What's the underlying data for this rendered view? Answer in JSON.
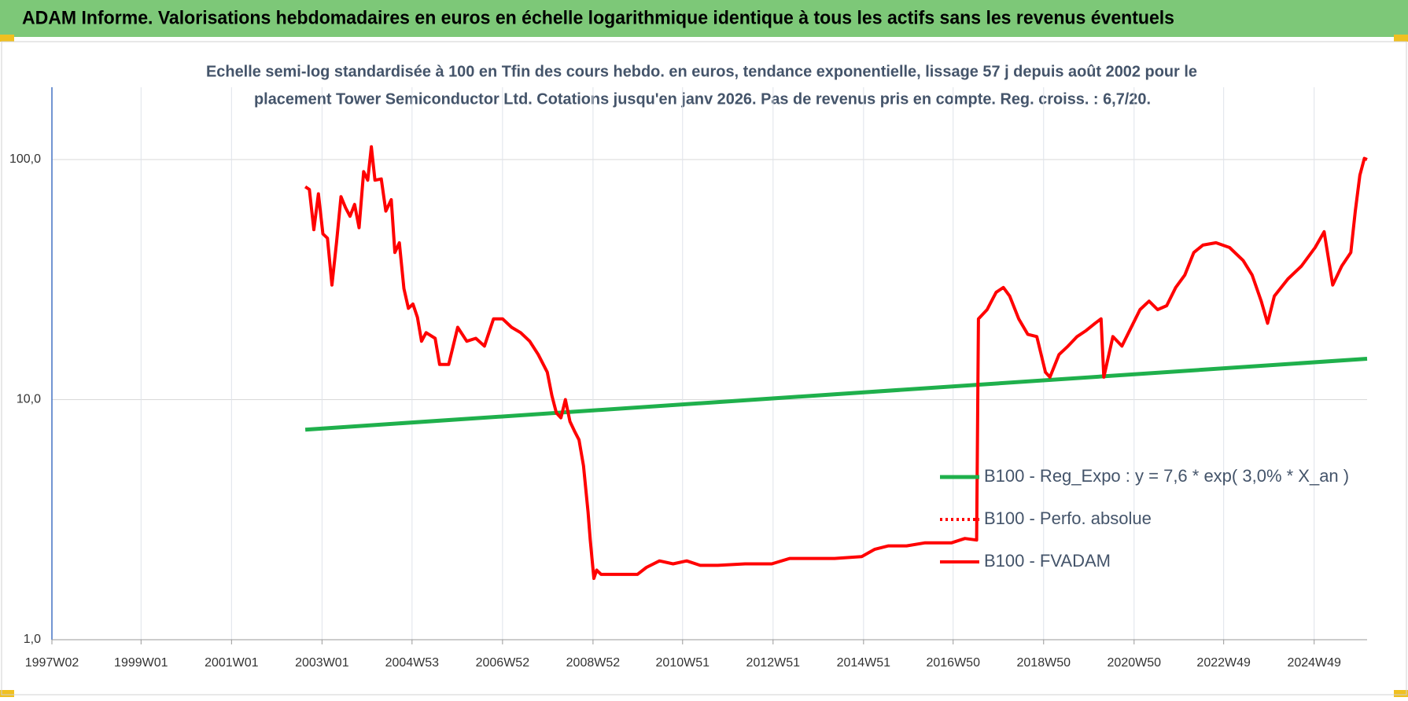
{
  "chart_data": {
    "type": "line",
    "title": "ADAM Informe. Valorisations hebdomadaires en euros en échelle logarithmique identique à tous les actifs sans les revenus éventuels",
    "subtitle": [
      "Echelle semi-log standardisée à 100 en Tfin des cours hebdo. en euros, tendance exponentielle, lissage 57 j depuis août 2002 pour le",
      "placement Tower Semiconductor Ltd. Cotations jusqu'en janv 2026. Pas de revenus pris en compte. Reg. croiss. : 6,7/20."
    ],
    "y_scale": "log",
    "grid": true,
    "legend_position": "right",
    "xlim": [
      1997.03,
      2026.1
    ],
    "xticks": [
      {
        "value": 1997.03,
        "label": "1997W02"
      },
      {
        "value": 1999.0,
        "label": "1999W01"
      },
      {
        "value": 2001.0,
        "label": "2001W01"
      },
      {
        "value": 2003.0,
        "label": "2003W01"
      },
      {
        "value": 2004.99,
        "label": "2004W53"
      },
      {
        "value": 2006.99,
        "label": "2006W52"
      },
      {
        "value": 2008.99,
        "label": "2008W52"
      },
      {
        "value": 2010.97,
        "label": "2010W51"
      },
      {
        "value": 2012.97,
        "label": "2012W51"
      },
      {
        "value": 2014.97,
        "label": "2014W51"
      },
      {
        "value": 2016.95,
        "label": "2016W50"
      },
      {
        "value": 2018.95,
        "label": "2018W50"
      },
      {
        "value": 2020.95,
        "label": "2020W50"
      },
      {
        "value": 2022.93,
        "label": "2022W49"
      },
      {
        "value": 2024.93,
        "label": "2024W49"
      }
    ],
    "ylim": [
      1,
      200
    ],
    "yticks": [
      {
        "value": 1,
        "label": "1,0"
      },
      {
        "value": 10,
        "label": "10,0"
      },
      {
        "value": 100,
        "label": "100,0"
      }
    ],
    "series": [
      {
        "name": "B100 - Reg_Expo : y = 7,6 * exp( 3,0% *  X_an )",
        "color": "#1fb04c",
        "style": "solid",
        "x": [
          2002.63,
          2026.1
        ],
        "values": [
          7.5,
          14.8
        ]
      },
      {
        "name": "B100 - Perfo. absolue",
        "color": "#ff0000",
        "style": "dotted",
        "x": [],
        "values": []
      },
      {
        "name": "B100 - FVADAM",
        "color": "#ff0000",
        "style": "solid",
        "x": [
          2002.63,
          2002.72,
          2002.82,
          2002.92,
          2003.02,
          2003.12,
          2003.22,
          2003.32,
          2003.42,
          2003.52,
          2003.62,
          2003.72,
          2003.82,
          2003.92,
          2004.01,
          2004.09,
          2004.17,
          2004.31,
          2004.41,
          2004.53,
          2004.61,
          2004.71,
          2004.81,
          2004.91,
          2005.01,
          2005.11,
          2005.2,
          2005.3,
          2005.5,
          2005.6,
          2005.8,
          2006.0,
          2006.2,
          2006.4,
          2006.59,
          2006.79,
          2006.99,
          2007.19,
          2007.39,
          2007.59,
          2007.78,
          2007.98,
          2008.08,
          2008.18,
          2008.28,
          2008.38,
          2008.48,
          2008.58,
          2008.68,
          2008.78,
          2008.88,
          2008.93,
          2009.01,
          2009.07,
          2009.17,
          2009.57,
          2009.97,
          2010.17,
          2010.46,
          2010.76,
          2011.06,
          2011.36,
          2011.75,
          2012.35,
          2012.94,
          2013.34,
          2013.74,
          2014.33,
          2014.93,
          2015.22,
          2015.52,
          2015.92,
          2016.32,
          2016.91,
          2017.21,
          2017.47,
          2017.51,
          2017.7,
          2017.9,
          2018.06,
          2018.2,
          2018.4,
          2018.6,
          2018.8,
          2018.99,
          2019.09,
          2019.29,
          2019.49,
          2019.69,
          2019.89,
          2020.09,
          2020.22,
          2020.28,
          2020.48,
          2020.68,
          2020.88,
          2021.08,
          2021.28,
          2021.47,
          2021.67,
          2021.87,
          2022.07,
          2022.27,
          2022.47,
          2022.76,
          2023.06,
          2023.36,
          2023.56,
          2023.76,
          2023.9,
          2024.05,
          2024.35,
          2024.65,
          2024.95,
          2025.15,
          2025.34,
          2025.54,
          2025.74,
          2025.84,
          2025.94,
          2026.04,
          2026.1
        ],
        "values": [
          77,
          75,
          51,
          72,
          49,
          47,
          30,
          45,
          70,
          63,
          58,
          65,
          52,
          89,
          82,
          113,
          82,
          83,
          61,
          68,
          41,
          45,
          29,
          24,
          25,
          22,
          17.5,
          19,
          18,
          14,
          14,
          20,
          17.5,
          18,
          16.7,
          21.7,
          21.7,
          20,
          19,
          17.5,
          15.4,
          13,
          10.4,
          8.8,
          8.4,
          10,
          8.1,
          7.4,
          6.8,
          5.3,
          3.4,
          2.6,
          1.8,
          1.95,
          1.87,
          1.87,
          1.87,
          2.0,
          2.13,
          2.07,
          2.13,
          2.04,
          2.04,
          2.07,
          2.07,
          2.18,
          2.18,
          2.18,
          2.22,
          2.38,
          2.46,
          2.46,
          2.53,
          2.53,
          2.64,
          2.6,
          21.7,
          23.7,
          28,
          29.3,
          27,
          21.7,
          18.7,
          18.3,
          13,
          12.4,
          15.4,
          16.7,
          18.3,
          19.4,
          20.8,
          21.7,
          12.4,
          18.3,
          16.7,
          19.9,
          23.7,
          25.7,
          23.7,
          24.6,
          29.3,
          33,
          41,
          44,
          45,
          43,
          38,
          33,
          25.7,
          20.8,
          27,
          31.8,
          36,
          43,
          50,
          30,
          36,
          41,
          61,
          86,
          101,
          100
        ]
      }
    ]
  }
}
